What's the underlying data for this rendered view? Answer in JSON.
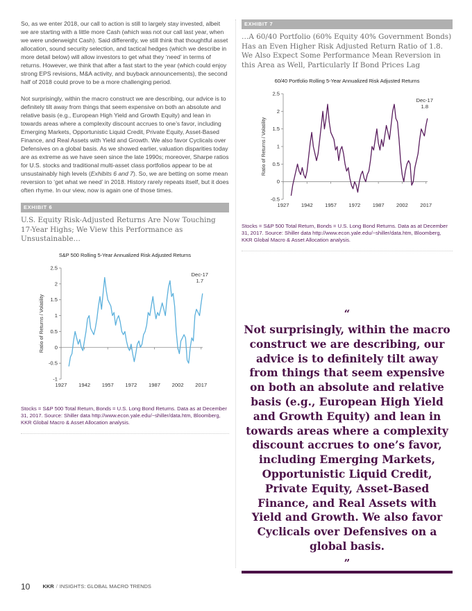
{
  "body": {
    "para1": "So, as we enter 2018, our call to action is still to largely stay invested, albeit we are starting with a little more Cash (which was not our call last year, when we were underweight Cash). Said differently, we still think that thoughtful asset allocation, sound security selection, and tactical hedges (which we describe in more detail below) will allow investors to get what they ‘need’ in terms of returns. However, we think that after a fast start to the year (which could enjoy strong EPS revisions, M&A activity, and buyback announcements), the second half of 2018 could prove to be a more challenging period.",
    "para2_start": "Not surprisingly, within the macro construct we are describing, our advice is to definitely tilt away from things that seem expensive on both an absolute and relative basis (e.g., European High Yield and Growth Equity) and lean in towards areas where a complexity discount accrues to one’s favor, including Emerging Markets, Opportunistic Liquid Credit, Private Equity, Asset-Based Finance, and Real Assets with Yield and Growth. We also favor Cyclicals over Defensives on a global basis. As we showed earlier, valuation disparities today are as extreme as we have seen since the late 1990s; moreover, Sharpe ratios for U.S. stocks and traditional multi-asset class portfolios appear to be at unsustainably high levels (",
    "para2_italic": "Exhibits 6 and 7",
    "para2_end": "). So, we are betting on some mean reversion to ‘get what we need’ in 2018. History rarely repeats itself, but it does often rhyme. In our view, now is again one of those times."
  },
  "exhibit6": {
    "label": "EXHIBIT 6",
    "title": "U.S. Equity Risk-Adjusted Returns Are Now Touching 17-Year Highs; We View this Performance as Unsustainable…",
    "source": "Stocks = S&P 500 Total Return, Bonds = U.S. Long Bond Returns. Data as at December 31, 2017. Source: Shiller data http://www.econ.yale.edu/~shiller/data.htm, Bloomberg, KKR Global Macro & Asset Allocation analysis."
  },
  "exhibit7": {
    "label": "EXHIBIT 7",
    "title": "…A 60/40 Portfolio (60% Equity 40% Government Bonds) Has an Even Higher Risk Adjusted Return Ratio of 1.8. We Also Expect Some Performance Mean Reversion in this Area as Well, Particularly If Bond Prices Lag",
    "source": "Stocks = S&P 500 Total Return, Bonds = U.S. Long Bond Returns. Data as at December 31, 2017. Source: Shiller data http://www.econ.yale.edu/~shiller/data.htm, Bloomberg, KKR Global Macro & Asset Allocation analysis."
  },
  "quote": {
    "open_mark": "“",
    "text": "Not surprisingly, within the macro construct we are describing, our advice is to definitely tilt away from things that seem expensive on both an absolute and relative basis (e.g., European High Yield and Growth Equity) and lean in towards areas where a complexity discount accrues to one’s favor, including Emerging Markets, Opportunistic Liquid Credit, Private Equity, Asset-Based Finance, and Real Assets with Yield and Growth. We also favor Cyclicals over Defensives on a global basis.",
    "close_mark": "”"
  },
  "footer": {
    "page_number": "10",
    "brand": "KKR",
    "section": "INSIGHTS: GLOBAL MACRO TRENDS"
  },
  "chart_data": [
    {
      "id": "exhibit6",
      "type": "line",
      "title": "S&P 500 Rolling 5-Year Annualized Risk Adjusted Returns",
      "xlabel": "",
      "ylabel": "Ratio of Returns / Volatility",
      "xlim": [
        1927,
        2018
      ],
      "ylim": [
        -1,
        2.5
      ],
      "yticks": [
        "-1",
        "-0.5",
        "0",
        "0.5",
        "1",
        "1.5",
        "2",
        "2.5"
      ],
      "yticks_values": [
        -1,
        -0.5,
        0,
        0.5,
        1,
        1.5,
        2,
        2.5
      ],
      "xticks": [
        "1927",
        "1942",
        "1957",
        "1972",
        "1987",
        "2002",
        "2017"
      ],
      "color": "#5bb0dc",
      "annotation": {
        "label": "Dec-17",
        "value_label": "1.7",
        "x": 2017.9,
        "y": 1.7
      },
      "series": [
        {
          "x": [
            1932,
            1933,
            1934,
            1935,
            1936,
            1937,
            1938,
            1939,
            1940,
            1941,
            1942,
            1943,
            1944,
            1945,
            1946,
            1947,
            1948,
            1949,
            1950,
            1951,
            1952,
            1953,
            1954,
            1955,
            1956,
            1957,
            1958,
            1959,
            1960,
            1961,
            1962,
            1963,
            1964,
            1965,
            1966,
            1967,
            1968,
            1969,
            1970,
            1971,
            1972,
            1973,
            1974,
            1975,
            1976,
            1977,
            1978,
            1979,
            1980,
            1981,
            1982,
            1983,
            1984,
            1985,
            1986,
            1987,
            1988,
            1989,
            1990,
            1991,
            1992,
            1993,
            1994,
            1995,
            1996,
            1997,
            1998,
            1999,
            2000,
            2001,
            2002,
            2003,
            2004,
            2005,
            2006,
            2007,
            2008,
            2009,
            2010,
            2011,
            2012,
            2013,
            2014,
            2015,
            2016,
            2017,
            2017.9
          ],
          "y": [
            -0.6,
            -0.3,
            -0.2,
            0.2,
            0.5,
            0.3,
            0.1,
            0.25,
            0.0,
            -0.1,
            0.2,
            0.5,
            0.9,
            1.0,
            0.6,
            0.5,
            0.4,
            0.6,
            0.9,
            1.3,
            1.6,
            1.2,
            1.7,
            2.2,
            1.8,
            1.5,
            1.4,
            1.3,
            1.0,
            1.1,
            0.7,
            0.9,
            1.0,
            0.8,
            0.5,
            0.4,
            0.5,
            0.2,
            0.0,
            -0.1,
            0.1,
            -0.2,
            -0.45,
            -0.2,
            0.1,
            0.2,
            0.0,
            0.1,
            0.4,
            0.5,
            0.7,
            1.1,
            1.0,
            1.3,
            1.6,
            1.2,
            0.9,
            1.1,
            1.0,
            1.2,
            1.4,
            1.2,
            1.0,
            1.5,
            1.9,
            2.1,
            1.6,
            1.7,
            1.3,
            0.5,
            0.0,
            -0.2,
            0.2,
            0.3,
            0.4,
            0.3,
            -0.4,
            -0.5,
            0.0,
            0.3,
            0.2,
            1.0,
            1.2,
            1.1,
            1.0,
            1.4,
            1.7
          ]
        }
      ]
    },
    {
      "id": "exhibit7",
      "type": "line",
      "title": "60/40 Portfolio Rolling 5-Year Annualized Risk Adjusted Returns",
      "xlabel": "",
      "ylabel": "Ratio of Returns / Volatility",
      "xlim": [
        1927,
        2018
      ],
      "ylim": [
        -0.5,
        2.5
      ],
      "yticks": [
        "-0.5",
        "0",
        "0.5",
        "1",
        "1.5",
        "2",
        "2.5"
      ],
      "yticks_values": [
        -0.5,
        0,
        0.5,
        1,
        1.5,
        2,
        2.5
      ],
      "xticks": [
        "1927",
        "1942",
        "1957",
        "1972",
        "1987",
        "2002",
        "2017"
      ],
      "color": "#5a1e5e",
      "annotation": {
        "label": "Dec-17",
        "value_label": "1.8",
        "x": 2017.9,
        "y": 1.8
      },
      "series": [
        {
          "x": [
            1932,
            1933,
            1934,
            1935,
            1936,
            1937,
            1938,
            1939,
            1940,
            1941,
            1942,
            1943,
            1944,
            1945,
            1946,
            1947,
            1948,
            1949,
            1950,
            1951,
            1952,
            1953,
            1954,
            1955,
            1956,
            1957,
            1958,
            1959,
            1960,
            1961,
            1962,
            1963,
            1964,
            1965,
            1966,
            1967,
            1968,
            1969,
            1970,
            1971,
            1972,
            1973,
            1974,
            1975,
            1976,
            1977,
            1978,
            1979,
            1980,
            1981,
            1982,
            1983,
            1984,
            1985,
            1986,
            1987,
            1988,
            1989,
            1990,
            1991,
            1992,
            1993,
            1994,
            1995,
            1996,
            1997,
            1998,
            1999,
            2000,
            2001,
            2002,
            2003,
            2004,
            2005,
            2006,
            2007,
            2008,
            2009,
            2010,
            2011,
            2012,
            2013,
            2014,
            2015,
            2016,
            2017,
            2017.9
          ],
          "y": [
            -0.4,
            -0.1,
            0.1,
            0.3,
            0.5,
            0.3,
            0.2,
            0.4,
            0.2,
            0.1,
            0.3,
            0.7,
            1.1,
            1.4,
            1.0,
            0.8,
            0.6,
            0.8,
            1.2,
            1.6,
            2.0,
            1.5,
            1.8,
            2.2,
            1.7,
            1.4,
            1.3,
            1.2,
            0.9,
            1.0,
            0.6,
            0.9,
            1.0,
            0.8,
            0.5,
            0.3,
            0.4,
            0.1,
            -0.1,
            -0.2,
            0.0,
            -0.1,
            -0.3,
            0.0,
            0.2,
            0.3,
            0.1,
            0.0,
            0.2,
            0.3,
            0.6,
            1.0,
            0.9,
            1.2,
            1.5,
            1.1,
            0.9,
            1.2,
            1.0,
            1.3,
            1.6,
            1.4,
            1.2,
            1.6,
            2.0,
            2.2,
            1.8,
            1.7,
            1.2,
            0.6,
            0.2,
            0.0,
            0.3,
            0.5,
            0.6,
            0.5,
            -0.1,
            0.0,
            0.4,
            0.6,
            0.8,
            1.2,
            1.5,
            1.4,
            1.3,
            1.6,
            1.8
          ]
        }
      ]
    }
  ]
}
